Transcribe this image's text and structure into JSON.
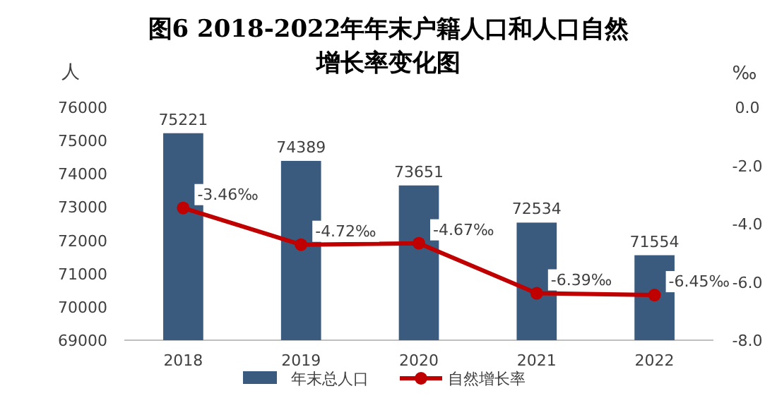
{
  "chart_data": {
    "type": "bar",
    "title": "图6  2018-2022年年末户籍人口和人口自然增长率变化图",
    "ylabel": "人",
    "y2label": "‰",
    "categories": [
      "2018",
      "2019",
      "2020",
      "2021",
      "2022"
    ],
    "series": [
      {
        "name": "年末总人口",
        "color": "#3b5b7e",
        "values": [
          75221,
          74389,
          73651,
          72534,
          71554
        ]
      },
      {
        "name": "自然增长率",
        "type": "line",
        "axis": "y2",
        "color": "#c00000",
        "marker": "circle",
        "values": [
          -3.46,
          -4.72,
          -4.67,
          -6.39,
          -6.45
        ],
        "value_labels": [
          "-3.46‰",
          "-4.72‰",
          "-4.67‰",
          "-6.39‰",
          "-6.45‰"
        ]
      }
    ],
    "ylim": [
      69000,
      76000
    ],
    "yticks": [
      69000,
      70000,
      71000,
      72000,
      73000,
      74000,
      75000,
      76000
    ],
    "y2lim": [
      -8,
      0
    ],
    "y2ticks": [
      {
        "value": -8,
        "label": "-8.0"
      },
      {
        "value": -6,
        "label": "-6.0"
      },
      {
        "value": -4,
        "label": "-4.0"
      },
      {
        "value": -2,
        "label": "-2.0"
      },
      {
        "value": 0,
        "label": "0.0"
      }
    ],
    "data_labels": true,
    "legend": "bottom",
    "grid": false
  }
}
